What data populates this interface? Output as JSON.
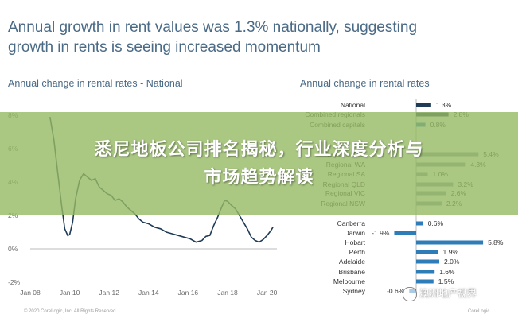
{
  "slide": {
    "title_line1": "Annual growth in rent values was 1.3% nationally, suggesting",
    "title_line2": "growth in rents is seeing increased momentum"
  },
  "banner": {
    "line1": "悉尼地板公司排名揭秘，行业深度分析与",
    "line2": "市场趋势解读",
    "color": "#96ba64"
  },
  "watermark": "澳洲地产视界",
  "footer": {
    "copyright": "© 2020 CoreLogic, Inc. All Rights Reserved.",
    "right": "CoreLogic"
  },
  "chart_data": [
    {
      "type": "line",
      "title": "Annual change in rental rates - National",
      "ylim": [
        -2,
        8
      ],
      "yticks": [
        "-2%",
        "0%",
        "2%",
        "4%",
        "6%",
        "8%"
      ],
      "xticks": [
        "Jan 08",
        "Jan 10",
        "Jan 12",
        "Jan 14",
        "Jan 16",
        "Jan 18",
        "Jan 20"
      ],
      "x_range": [
        2008,
        2020.5
      ],
      "color": "#1f3b57",
      "series": [
        {
          "points": [
            [
              2009.0,
              7.9
            ],
            [
              2009.2,
              6.5
            ],
            [
              2009.4,
              4.5
            ],
            [
              2009.6,
              2.5
            ],
            [
              2009.75,
              1.2
            ],
            [
              2009.9,
              0.8
            ],
            [
              2010.0,
              0.85
            ],
            [
              2010.15,
              1.6
            ],
            [
              2010.3,
              3.0
            ],
            [
              2010.5,
              4.1
            ],
            [
              2010.7,
              4.5
            ],
            [
              2010.9,
              4.3
            ],
            [
              2011.1,
              4.1
            ],
            [
              2011.3,
              4.2
            ],
            [
              2011.5,
              3.7
            ],
            [
              2011.7,
              3.5
            ],
            [
              2011.9,
              3.3
            ],
            [
              2012.1,
              3.2
            ],
            [
              2012.3,
              2.9
            ],
            [
              2012.5,
              3.0
            ],
            [
              2012.7,
              2.8
            ],
            [
              2012.9,
              2.5
            ],
            [
              2013.1,
              2.3
            ],
            [
              2013.3,
              2.1
            ],
            [
              2013.5,
              1.8
            ],
            [
              2013.7,
              1.6
            ],
            [
              2014.0,
              1.5
            ],
            [
              2014.3,
              1.3
            ],
            [
              2014.6,
              1.2
            ],
            [
              2014.9,
              1.0
            ],
            [
              2015.2,
              0.9
            ],
            [
              2015.5,
              0.8
            ],
            [
              2015.8,
              0.7
            ],
            [
              2016.1,
              0.6
            ],
            [
              2016.4,
              0.4
            ],
            [
              2016.7,
              0.5
            ],
            [
              2016.9,
              0.75
            ],
            [
              2017.1,
              0.8
            ],
            [
              2017.3,
              1.4
            ],
            [
              2017.5,
              1.9
            ],
            [
              2017.7,
              2.5
            ],
            [
              2017.85,
              2.9
            ],
            [
              2018.0,
              2.85
            ],
            [
              2018.2,
              2.6
            ],
            [
              2018.4,
              2.4
            ],
            [
              2018.6,
              2.0
            ],
            [
              2018.8,
              1.6
            ],
            [
              2019.0,
              1.2
            ],
            [
              2019.2,
              0.7
            ],
            [
              2019.4,
              0.5
            ],
            [
              2019.6,
              0.4
            ],
            [
              2019.8,
              0.55
            ],
            [
              2020.0,
              0.8
            ],
            [
              2020.2,
              1.1
            ],
            [
              2020.3,
              1.3
            ]
          ]
        }
      ]
    },
    {
      "type": "bar",
      "orientation": "horizontal",
      "title": "Annual change in rental rates",
      "categories": [
        "National",
        "Combined regionals",
        "Combined capitals",
        "Regional TAS",
        "Regional WA",
        "Regional SA",
        "Regional QLD",
        "Regional VIC",
        "Regional NSW",
        "Canberra",
        "Darwin",
        "Hobart",
        "Perth",
        "Adelaide",
        "Brisbane",
        "Melbourne",
        "Sydney"
      ],
      "labels": [
        "1.3%",
        "2.8%",
        "0.8%",
        "5.4%",
        "4.3%",
        "1.0%",
        "3.2%",
        "2.6%",
        "2.2%",
        "0.6%",
        "-1.9%",
        "5.8%",
        "1.9%",
        "2.0%",
        "1.6%",
        "1.5%",
        "-0.6%"
      ],
      "values": [
        1.3,
        2.8,
        0.8,
        5.4,
        4.3,
        1.0,
        3.2,
        2.6,
        2.2,
        0.6,
        -1.9,
        5.8,
        1.9,
        2.0,
        1.6,
        1.5,
        -0.6
      ],
      "colors": [
        "#1f3b57",
        "#1f3b57",
        "#2e7cb8",
        "#8e9aa6",
        "#8e9aa6",
        "#8e9aa6",
        "#8e9aa6",
        "#8e9aa6",
        "#8e9aa6",
        "#2e7cb8",
        "#2e7cb8",
        "#2e7cb8",
        "#2e7cb8",
        "#2e7cb8",
        "#2e7cb8",
        "#2e7cb8",
        "#2e7cb8"
      ]
    }
  ]
}
